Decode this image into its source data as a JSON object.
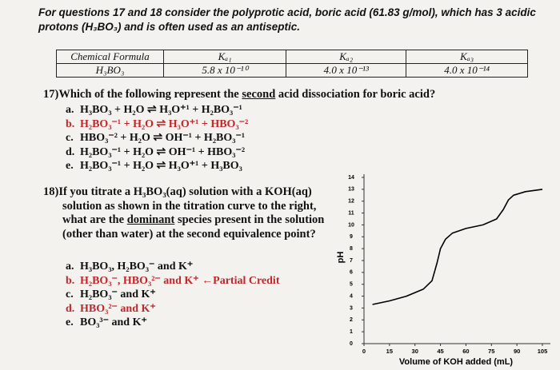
{
  "header": {
    "lines": [
      "For questions 17 and 18 consider the polyprotic acid, boric acid (61.83 g/mol), which has 3 acidic",
      "protons (H₃BO₃) and is often used as an antiseptic."
    ]
  },
  "table": {
    "headers": [
      "Chemical Formula",
      "Kₐ₁",
      "Kₐ₂",
      "Kₐ₃"
    ],
    "rows": [
      [
        "H₃BO₃",
        "5.8 x 10⁻¹⁰",
        "4.0 x 10⁻¹³",
        "4.0 x 10⁻¹⁴"
      ]
    ]
  },
  "q17": {
    "prompt": [
      "17)Which of the following represent the ",
      "second",
      " acid dissociation for boric acid?"
    ],
    "options": [
      {
        "letter": "a.",
        "text": "H₃BO₃ + H₂O ⇌ H₃O⁺¹ + H₂BO₃⁻¹"
      },
      {
        "letter": "b.",
        "text": "H₂BO₃⁻¹ + H₂O ⇌ H₃O⁺¹ + HBO₃⁻²"
      },
      {
        "letter": "c.",
        "text": "HBO₃⁻² + H₂O ⇌ OH⁻¹ + H₂BO₃⁻¹"
      },
      {
        "letter": "d.",
        "text": "H₂BO₃⁻¹ + H₂O ⇌ OH⁻¹ + HBO₃⁻²"
      },
      {
        "letter": "e.",
        "text": "H₂BO₃⁻¹ + H₂O ⇌ H₃O⁺¹ + H₃BO₃"
      }
    ]
  },
  "q18": {
    "prompt": [
      "18)If you titrate a H₃BO₃(aq) solution with a KOH(aq) solution as shown in the titration curve to the right, what are the ",
      "dominant",
      " species present in the solution (other than water) at the second equivalence point?"
    ],
    "options": [
      {
        "letter": "a.",
        "text": "H₃BO₃, H₂BO₃⁻ and K⁺"
      },
      {
        "letter": "b.",
        "text": "H₂BO₃⁻, HBO₃²⁻ and K⁺ ←Partial Credit"
      },
      {
        "letter": "c.",
        "text": "H₂BO₃⁻ and K⁺"
      },
      {
        "letter": "d.",
        "text": "HBO₃²⁻ and K⁺"
      },
      {
        "letter": "e.",
        "text": "BO₃³⁻ and K⁺"
      }
    ]
  },
  "chart_data": {
    "type": "line",
    "x_label": "Volume of KOH added (mL)",
    "y_label": "pH",
    "x": [
      5,
      15,
      25,
      35,
      40,
      43,
      45,
      48,
      52,
      60,
      70,
      78,
      82,
      85,
      88,
      95,
      105
    ],
    "values": [
      3.3,
      3.6,
      4.0,
      4.6,
      5.3,
      6.8,
      8.0,
      8.8,
      9.3,
      9.7,
      10.0,
      10.5,
      11.3,
      12.1,
      12.5,
      12.8,
      13.0
    ],
    "color": "#000000",
    "xlim": [
      0,
      105
    ],
    "ylim": [
      0,
      14
    ],
    "xticks": [
      0,
      15,
      30,
      45,
      60,
      75,
      90,
      105
    ],
    "yticks": [
      0,
      1,
      2,
      3,
      4,
      5,
      6,
      7,
      8,
      9,
      10,
      11,
      12,
      13,
      14
    ]
  }
}
